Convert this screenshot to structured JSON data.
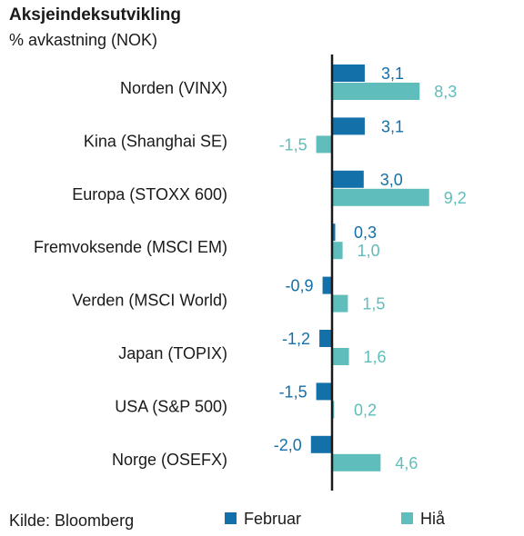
{
  "title": "Aksjeindeksutvikling",
  "subtitle": "% avkastning (NOK)",
  "source": "Kilde: Bloomberg",
  "colors": {
    "februar": "#1470a8",
    "hia": "#5fbdbb",
    "february_label": "#1470a8",
    "hia_label": "#5fbdbb"
  },
  "chart_data": {
    "type": "bar",
    "orientation": "horizontal",
    "categories": [
      "Norden (VINX)",
      "Kina (Shanghai SE)",
      "Europa (STOXX 600)",
      "Fremvoksende (MSCI EM)",
      "Verden (MSCI World)",
      "Japan (TOPIX)",
      "USA (S&P 500)",
      "Norge (OSEFX)"
    ],
    "series": [
      {
        "name": "Februar",
        "values": [
          3.1,
          3.1,
          3.0,
          0.3,
          -0.9,
          -1.2,
          -1.5,
          -2.0
        ],
        "labels": [
          "3,1",
          "3,1",
          "3,0",
          "0,3",
          "-0,9",
          "-1,2",
          "-1,5",
          "-2,0"
        ]
      },
      {
        "name": "Hiå",
        "values": [
          8.3,
          -1.5,
          9.2,
          1.0,
          1.5,
          1.6,
          0.2,
          4.6
        ],
        "labels": [
          "8,3",
          "-1,5",
          "9,2",
          "1,0",
          "1,5",
          "1,6",
          "0,2",
          "4,6"
        ]
      }
    ],
    "legend": "bottom",
    "grid": false
  }
}
